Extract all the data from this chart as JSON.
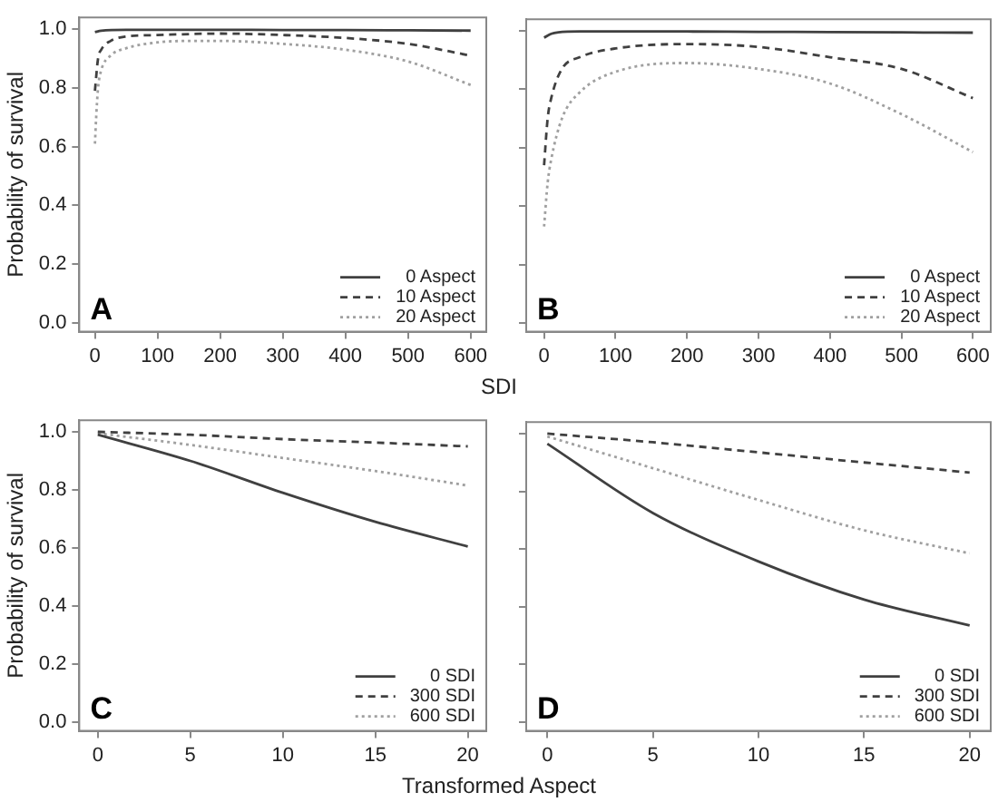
{
  "chart_data": [
    {
      "type": "line",
      "xlabel": "SDI",
      "ylabel": "Probability of survival",
      "annotations": [
        "A"
      ],
      "legend": "bottom right",
      "xlim": [
        -25,
        625
      ],
      "xticks": [
        0,
        100,
        200,
        300,
        400,
        500,
        600
      ],
      "ylim": [
        -0.03,
        1.04
      ],
      "yticks": [
        {
          "value": 0,
          "label": "0.0"
        },
        {
          "value": 0.2,
          "label": "0.2"
        },
        {
          "value": 0.4,
          "label": "0.4"
        },
        {
          "value": 0.6,
          "label": "0.6"
        },
        {
          "value": 0.8,
          "label": "0.8"
        },
        {
          "value": 1,
          "label": "1.0"
        }
      ],
      "series": [
        {
          "name": "0 Aspect",
          "color": "#404040",
          "line_style": "solid",
          "x": [
            0,
            10,
            50,
            100,
            200,
            300,
            400,
            500,
            600
          ],
          "values": [
            0.99,
            0.995,
            0.998,
            0.998,
            0.998,
            0.997,
            0.997,
            0.996,
            0.995
          ]
        },
        {
          "name": "10 Aspect",
          "color": "#404040",
          "line_style": "dashed",
          "x": [
            0,
            5,
            10,
            25,
            50,
            100,
            200,
            300,
            400,
            500,
            600
          ],
          "values": [
            0.79,
            0.9,
            0.93,
            0.96,
            0.975,
            0.98,
            0.985,
            0.98,
            0.97,
            0.95,
            0.91
          ]
        },
        {
          "name": "20 Aspect",
          "color": "#a0a0a0",
          "line_style": "dotted",
          "x": [
            0,
            2,
            5,
            10,
            25,
            50,
            100,
            150,
            200,
            300,
            400,
            500,
            600
          ],
          "values": [
            0.61,
            0.7,
            0.8,
            0.86,
            0.91,
            0.935,
            0.955,
            0.96,
            0.96,
            0.95,
            0.93,
            0.89,
            0.81
          ]
        }
      ]
    },
    {
      "type": "line",
      "annotations": [
        "B"
      ],
      "legend": "bottom right",
      "tick_labels": "x",
      "xlim": [
        -25,
        625
      ],
      "xticks": [
        0,
        100,
        200,
        300,
        400,
        500,
        600
      ],
      "ylim": [
        -0.03,
        1.04
      ],
      "yticks": [
        {
          "value": 0,
          "label": null
        },
        {
          "value": 0.2,
          "label": null
        },
        {
          "value": 0.4,
          "label": null
        },
        {
          "value": 0.6,
          "label": null
        },
        {
          "value": 0.8,
          "label": null
        },
        {
          "value": 1,
          "label": null
        }
      ],
      "series": [
        {
          "name": "0 Aspect",
          "color": "#404040",
          "line_style": "solid",
          "x": [
            0,
            10,
            20,
            50,
            100,
            200,
            300,
            400,
            500,
            600
          ],
          "values": [
            0.977,
            0.99,
            0.995,
            0.998,
            0.998,
            0.998,
            0.997,
            0.996,
            0.995,
            0.994
          ]
        },
        {
          "name": "10 Aspect",
          "color": "#404040",
          "line_style": "dashed",
          "x": [
            0,
            5,
            10,
            25,
            50,
            100,
            200,
            300,
            400,
            500,
            600
          ],
          "values": [
            0.54,
            0.7,
            0.77,
            0.87,
            0.91,
            0.94,
            0.955,
            0.945,
            0.91,
            0.87,
            0.77
          ]
        },
        {
          "name": "20 Aspect",
          "color": "#a0a0a0",
          "line_style": "dotted",
          "x": [
            0,
            5,
            10,
            25,
            50,
            100,
            200,
            300,
            400,
            500,
            600
          ],
          "values": [
            0.33,
            0.48,
            0.56,
            0.7,
            0.79,
            0.86,
            0.89,
            0.87,
            0.82,
            0.715,
            0.585
          ]
        }
      ]
    },
    {
      "type": "line",
      "xlabel": "Transformed Aspect",
      "ylabel": "Probability of survival",
      "annotations": [
        "C"
      ],
      "legend": "bottom right",
      "xlim": [
        -1,
        21
      ],
      "xticks": [
        0,
        5,
        10,
        15,
        20
      ],
      "x": [
        0,
        5,
        10,
        15,
        20
      ],
      "ylim": [
        -0.03,
        1.04
      ],
      "yticks": [
        {
          "value": 0,
          "label": "0.0"
        },
        {
          "value": 0.2,
          "label": "0.2"
        },
        {
          "value": 0.4,
          "label": "0.4"
        },
        {
          "value": 0.6,
          "label": "0.6"
        },
        {
          "value": 0.8,
          "label": "0.8"
        },
        {
          "value": 1,
          "label": "1.0"
        }
      ],
      "series": [
        {
          "name": "0 SDI",
          "color": "#404040",
          "line_style": "solid",
          "values": [
            0.99,
            0.9,
            0.79,
            0.69,
            0.605
          ]
        },
        {
          "name": "300 SDI",
          "color": "#404040",
          "line_style": "dashed",
          "values": [
            1.0,
            0.99,
            0.975,
            0.963,
            0.95
          ]
        },
        {
          "name": "600 SDI",
          "color": "#a0a0a0",
          "line_style": "dotted",
          "values": [
            0.995,
            0.955,
            0.91,
            0.865,
            0.815
          ]
        }
      ]
    },
    {
      "type": "line",
      "annotations": [
        "D"
      ],
      "legend": "bottom right",
      "tick_labels": "x",
      "xlim": [
        -1,
        21
      ],
      "xticks": [
        0,
        5,
        10,
        15,
        20
      ],
      "x": [
        0,
        5,
        10,
        15,
        20
      ],
      "ylim": [
        -0.03,
        1.04
      ],
      "yticks": [
        {
          "value": 0,
          "label": null
        },
        {
          "value": 0.2,
          "label": null
        },
        {
          "value": 0.4,
          "label": null
        },
        {
          "value": 0.6,
          "label": null
        },
        {
          "value": 0.8,
          "label": null
        },
        {
          "value": 1,
          "label": null
        }
      ],
      "series": [
        {
          "name": "0 SDI",
          "color": "#404040",
          "line_style": "solid",
          "values": [
            0.965,
            0.725,
            0.557,
            0.425,
            0.335
          ]
        },
        {
          "name": "300 SDI",
          "color": "#404040",
          "line_style": "dashed",
          "values": [
            1.0,
            0.97,
            0.935,
            0.9,
            0.865
          ]
        },
        {
          "name": "600 SDI",
          "color": "#a0a0a0",
          "line_style": "dotted",
          "values": [
            0.99,
            0.88,
            0.77,
            0.665,
            0.585
          ]
        }
      ]
    }
  ]
}
